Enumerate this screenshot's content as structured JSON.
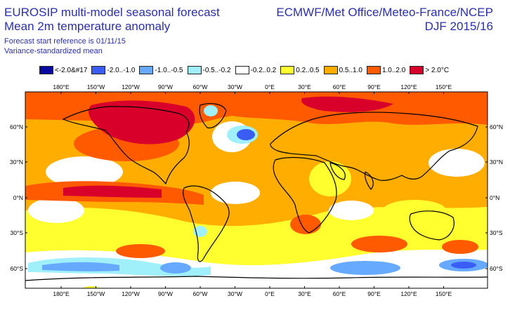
{
  "header": {
    "title_line1": "EUROSIP multi-model seasonal forecast",
    "title_line2": "Mean 2m temperature anomaly",
    "subtitle_line1": "Forecast start reference is 01/11/15",
    "subtitle_line2": "Variance-standardized mean",
    "source": "ECMWF/Met Office/Meteo-France/NCEP",
    "period": "DJF 2015/16"
  },
  "legend": [
    {
      "label": "<-2.0&#17",
      "color": "#0a0aa0"
    },
    {
      "label": "-2.0..-1.0",
      "color": "#3a5ef5"
    },
    {
      "label": "-1.0..-0.5",
      "color": "#66aaff"
    },
    {
      "label": "-0.5..-0.2",
      "color": "#9ff0fa"
    },
    {
      "label": "-0.2..0.2",
      "color": "#ffffff"
    },
    {
      "label": "0.2..0.5",
      "color": "#ffff30"
    },
    {
      "label": "0.5..1.0",
      "color": "#ffad00"
    },
    {
      "label": "1.0..2.0",
      "color": "#ff5a00"
    },
    {
      "label": "> 2.0°C",
      "color": "#d8002a"
    }
  ],
  "axes": {
    "x_ticks": [
      "180°E",
      "150°W",
      "120°W",
      "90°W",
      "60°W",
      "30°W",
      "0°E",
      "30°E",
      "60°E",
      "90°E",
      "120°E",
      "150°E"
    ],
    "y_ticks": [
      "60°N",
      "30°N",
      "0°N",
      "30°S",
      "60°S"
    ]
  }
}
